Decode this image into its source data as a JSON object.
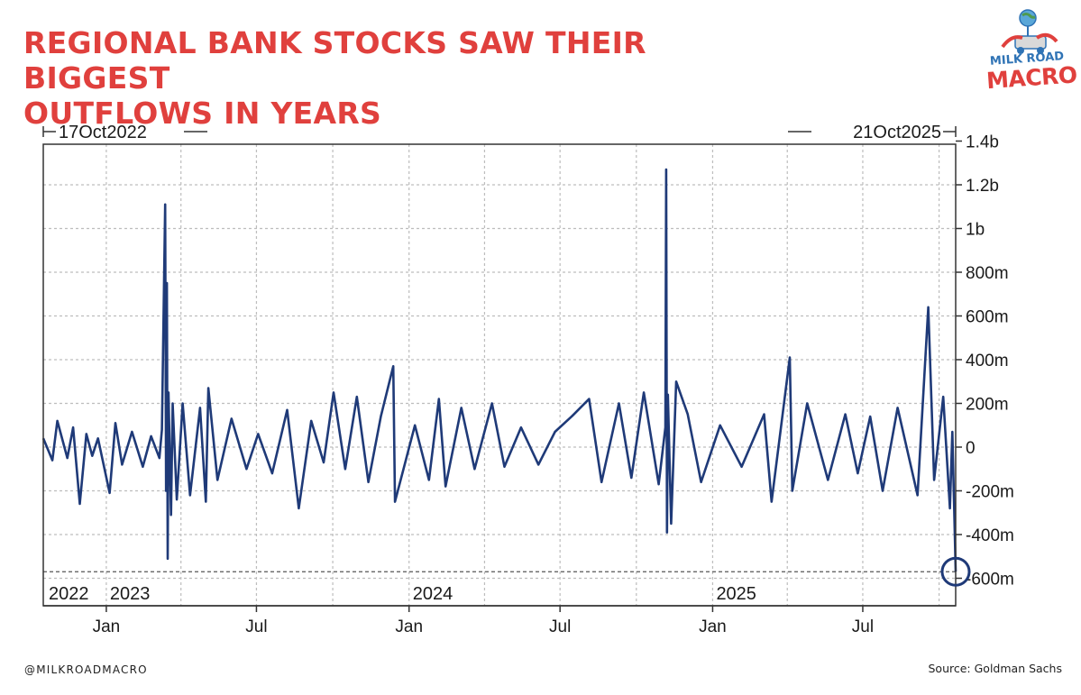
{
  "header": {
    "title_line1": "REGIONAL BANK STOCKS SAW THEIR BIGGEST",
    "title_line2": "OUTFLOWS IN YEARS"
  },
  "logo": {
    "top_text": "MILK ROAD",
    "bottom_text": "MACRO",
    "icon": "globe-milk-truck-icon"
  },
  "footer": {
    "handle": "@MILKROADMACRO",
    "source": "Source: Goldman Sachs"
  },
  "colors": {
    "title": "#e0403d",
    "logo_blue": "#2f73b5",
    "logo_red": "#e0403d",
    "series": "#1f3a78",
    "grid": "#bdbdbd",
    "axis_text": "#1a1a1a",
    "frame": "#333333"
  },
  "chart_data": {
    "type": "line",
    "start_label": "17Oct2022",
    "end_label": "21Oct2025",
    "x_range": [
      "2022-10-17",
      "2025-10-21"
    ],
    "ylim": [
      -650000000,
      1400000000
    ],
    "yticks": [
      {
        "value": 1400000000,
        "label": "1.4b"
      },
      {
        "value": 1200000000,
        "label": "1.2b"
      },
      {
        "value": 1000000000,
        "label": "1b"
      },
      {
        "value": 800000000,
        "label": "800m"
      },
      {
        "value": 600000000,
        "label": "600m"
      },
      {
        "value": 400000000,
        "label": "400m"
      },
      {
        "value": 200000000,
        "label": "200m"
      },
      {
        "value": 0,
        "label": "0"
      },
      {
        "value": -200000000,
        "label": "-200m"
      },
      {
        "value": -400000000,
        "label": "-400m"
      },
      {
        "value": -600000000,
        "label": "-600m"
      }
    ],
    "xticks": [
      {
        "date": "2023-01-01",
        "label": "Jan"
      },
      {
        "date": "2023-07-01",
        "label": "Jul"
      },
      {
        "date": "2024-01-01",
        "label": "Jan"
      },
      {
        "date": "2024-07-01",
        "label": "Jul"
      },
      {
        "date": "2025-01-01",
        "label": "Jan"
      },
      {
        "date": "2025-07-01",
        "label": "Jul"
      }
    ],
    "year_labels": [
      {
        "date": "2022-10-17",
        "label": "2022"
      },
      {
        "date": "2023-01-01",
        "label": "2023"
      },
      {
        "date": "2024-01-01",
        "label": "2024"
      },
      {
        "date": "2025-01-01",
        "label": "2025"
      }
    ],
    "grid": true,
    "reference_line_value": -570000000,
    "highlight_point": {
      "date": "2025-10-21",
      "value": -570000000
    },
    "series": [
      {
        "values": [
          [
            "2022-10-17",
            40000000
          ],
          [
            "2022-10-28",
            -60000000
          ],
          [
            "2022-11-03",
            120000000
          ],
          [
            "2022-11-15",
            -50000000
          ],
          [
            "2022-11-22",
            90000000
          ],
          [
            "2022-11-30",
            -260000000
          ],
          [
            "2022-12-08",
            60000000
          ],
          [
            "2022-12-15",
            -40000000
          ],
          [
            "2022-12-22",
            40000000
          ],
          [
            "2023-01-05",
            -210000000
          ],
          [
            "2023-01-12",
            110000000
          ],
          [
            "2023-01-20",
            -80000000
          ],
          [
            "2023-02-01",
            70000000
          ],
          [
            "2023-02-14",
            -90000000
          ],
          [
            "2023-02-24",
            50000000
          ],
          [
            "2023-03-06",
            -50000000
          ],
          [
            "2023-03-09",
            80000000
          ],
          [
            "2023-03-13",
            1110000000
          ],
          [
            "2023-03-14",
            -200000000
          ],
          [
            "2023-03-15",
            750000000
          ],
          [
            "2023-03-16",
            -510000000
          ],
          [
            "2023-03-17",
            250000000
          ],
          [
            "2023-03-20",
            -310000000
          ],
          [
            "2023-03-22",
            200000000
          ],
          [
            "2023-03-27",
            -240000000
          ],
          [
            "2023-04-03",
            200000000
          ],
          [
            "2023-04-12",
            -220000000
          ],
          [
            "2023-04-24",
            180000000
          ],
          [
            "2023-05-01",
            -250000000
          ],
          [
            "2023-05-04",
            270000000
          ],
          [
            "2023-05-15",
            -150000000
          ],
          [
            "2023-06-01",
            130000000
          ],
          [
            "2023-06-19",
            -100000000
          ],
          [
            "2023-07-03",
            60000000
          ],
          [
            "2023-07-20",
            -120000000
          ],
          [
            "2023-08-07",
            170000000
          ],
          [
            "2023-08-21",
            -280000000
          ],
          [
            "2023-09-05",
            120000000
          ],
          [
            "2023-09-20",
            -70000000
          ],
          [
            "2023-10-02",
            250000000
          ],
          [
            "2023-10-16",
            -100000000
          ],
          [
            "2023-10-30",
            230000000
          ],
          [
            "2023-11-13",
            -160000000
          ],
          [
            "2023-11-28",
            140000000
          ],
          [
            "2023-12-13",
            370000000
          ],
          [
            "2023-12-15",
            -250000000
          ],
          [
            "2024-01-08",
            100000000
          ],
          [
            "2024-01-25",
            -150000000
          ],
          [
            "2024-02-06",
            220000000
          ],
          [
            "2024-02-14",
            -180000000
          ],
          [
            "2024-03-04",
            180000000
          ],
          [
            "2024-03-20",
            -100000000
          ],
          [
            "2024-04-10",
            200000000
          ],
          [
            "2024-04-25",
            -90000000
          ],
          [
            "2024-05-15",
            90000000
          ],
          [
            "2024-06-05",
            -80000000
          ],
          [
            "2024-06-25",
            70000000
          ],
          [
            "2024-07-15",
            140000000
          ],
          [
            "2024-08-05",
            220000000
          ],
          [
            "2024-08-20",
            -160000000
          ],
          [
            "2024-09-10",
            200000000
          ],
          [
            "2024-09-25",
            -140000000
          ],
          [
            "2024-10-10",
            250000000
          ],
          [
            "2024-10-28",
            -170000000
          ],
          [
            "2024-11-05",
            90000000
          ],
          [
            "2024-11-06",
            1270000000
          ],
          [
            "2024-11-07",
            -390000000
          ],
          [
            "2024-11-08",
            240000000
          ],
          [
            "2024-11-12",
            -350000000
          ],
          [
            "2024-11-18",
            300000000
          ],
          [
            "2024-12-02",
            150000000
          ],
          [
            "2024-12-18",
            -160000000
          ],
          [
            "2025-01-10",
            100000000
          ],
          [
            "2025-02-05",
            -90000000
          ],
          [
            "2025-03-04",
            150000000
          ],
          [
            "2025-03-13",
            -250000000
          ],
          [
            "2025-04-04",
            410000000
          ],
          [
            "2025-04-07",
            -200000000
          ],
          [
            "2025-04-25",
            200000000
          ],
          [
            "2025-05-20",
            -150000000
          ],
          [
            "2025-06-10",
            150000000
          ],
          [
            "2025-06-25",
            -120000000
          ],
          [
            "2025-07-10",
            140000000
          ],
          [
            "2025-07-25",
            -200000000
          ],
          [
            "2025-08-12",
            180000000
          ],
          [
            "2025-09-05",
            -220000000
          ],
          [
            "2025-09-18",
            640000000
          ],
          [
            "2025-09-25",
            -150000000
          ],
          [
            "2025-10-06",
            230000000
          ],
          [
            "2025-10-14",
            -280000000
          ],
          [
            "2025-10-17",
            70000000
          ],
          [
            "2025-10-21",
            -570000000
          ]
        ]
      }
    ]
  }
}
